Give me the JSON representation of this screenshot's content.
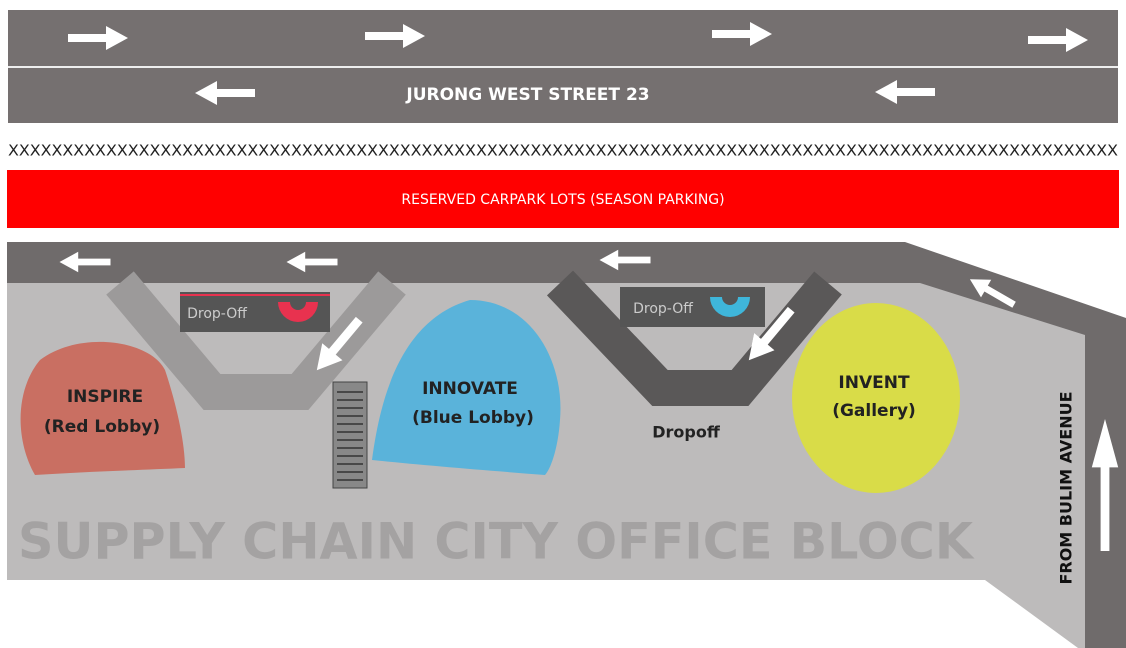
{
  "road": {
    "name": "JURONG WEST STREET 23"
  },
  "barrier": "XXXXXXXXXXXXXXXXXXXXXXXXXXXXXXXXXXXXXXXXXXXXXXXXXXXXXXXXXXXXXXXXXXXXXXXXXXXXXXXXXXXXXXXXXXXXXXXXXXXXXX",
  "reserved": "RESERVED CARPARK LOTS (SEASON PARKING)",
  "dropoff_signs": [
    "Drop-Off",
    "Drop-Off"
  ],
  "lobbies": [
    {
      "name": "INSPIRE",
      "subtitle": "(Red Lobby)"
    },
    {
      "name": "INNOVATE",
      "subtitle": "(Blue Lobby)"
    },
    {
      "name": "INVENT",
      "subtitle": "(Gallery)"
    }
  ],
  "dropoff_label": "Dropoff",
  "building": "SUPPLY CHAIN CITY OFFICE BLOCK",
  "entrance": "FROM BULIM AVENUE"
}
